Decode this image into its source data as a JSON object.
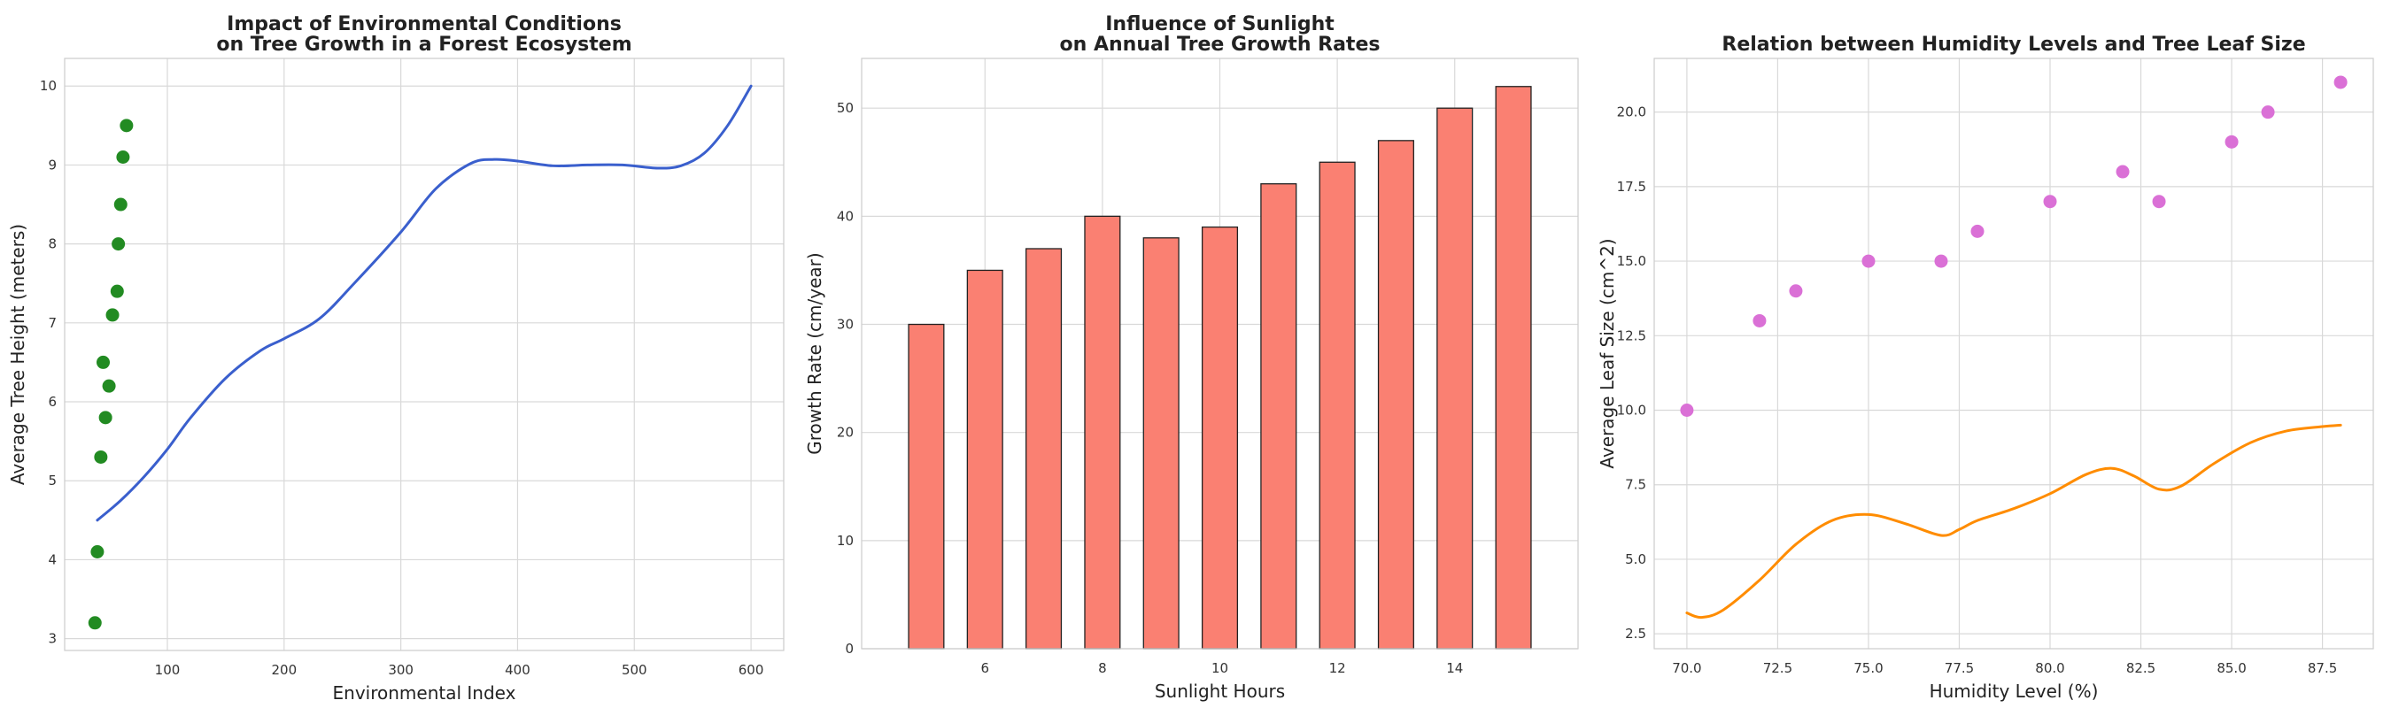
{
  "chart_data": [
    {
      "type": "scatter",
      "title": [
        "Impact of Environmental Conditions",
        "on Tree Growth in a Forest Ecosystem"
      ],
      "xlabel": "Environmental Index",
      "ylabel": "Average Tree Height (meters)",
      "xlim": [
        12,
        628
      ],
      "ylim": [
        2.85,
        10.35
      ],
      "xticks": [
        100,
        200,
        300,
        400,
        500,
        600
      ],
      "yticks": [
        3,
        4,
        5,
        6,
        7,
        8,
        9,
        10
      ],
      "grid": true,
      "scatter": {
        "color": "#228b22",
        "points": [
          [
            38,
            3.2
          ],
          [
            40,
            4.1
          ],
          [
            43,
            5.3
          ],
          [
            47,
            5.8
          ],
          [
            45,
            6.5
          ],
          [
            50,
            6.2
          ],
          [
            53,
            7.1
          ],
          [
            57,
            7.4
          ],
          [
            58,
            8.0
          ],
          [
            60,
            8.5
          ],
          [
            62,
            9.1
          ],
          [
            65,
            9.5
          ]
        ]
      },
      "line": {
        "color": "#3a5fcd",
        "points": [
          [
            40,
            4.5
          ],
          [
            60,
            4.75
          ],
          [
            80,
            5.05
          ],
          [
            100,
            5.4
          ],
          [
            120,
            5.8
          ],
          [
            150,
            6.3
          ],
          [
            180,
            6.65
          ],
          [
            200,
            6.8
          ],
          [
            230,
            7.05
          ],
          [
            260,
            7.5
          ],
          [
            300,
            8.15
          ],
          [
            330,
            8.7
          ],
          [
            360,
            9.02
          ],
          [
            380,
            9.07
          ],
          [
            400,
            9.05
          ],
          [
            430,
            8.99
          ],
          [
            460,
            9.0
          ],
          [
            490,
            9.0
          ],
          [
            520,
            8.96
          ],
          [
            540,
            8.99
          ],
          [
            560,
            9.15
          ],
          [
            580,
            9.5
          ],
          [
            600,
            10.0
          ]
        ]
      }
    },
    {
      "type": "bar",
      "title": [
        "Influence of Sunlight",
        "on Annual Tree Growth Rates"
      ],
      "xlabel": "Sunlight Hours",
      "ylabel": "Growth Rate (cm/year)",
      "xlim": [
        3.9,
        16.1
      ],
      "ylim": [
        0,
        54.6
      ],
      "xticks": [
        6,
        8,
        10,
        12,
        14
      ],
      "yticks": [
        0,
        10,
        20,
        30,
        40,
        50
      ],
      "grid": true,
      "bar_color": "#fa8072",
      "bar_width": 0.6,
      "categories": [
        5,
        6,
        7,
        8,
        9,
        10,
        11,
        12,
        13,
        14,
        15
      ],
      "values": [
        30,
        35,
        37,
        40,
        38,
        39,
        43,
        45,
        47,
        50,
        52
      ]
    },
    {
      "type": "scatter",
      "title": [
        "Relation between Humidity Levels and Tree Leaf Size"
      ],
      "xlabel": "Humidity Level (%)",
      "ylabel": "Average Leaf Size (cm^2)",
      "xlim": [
        69.1,
        88.9
      ],
      "ylim": [
        2.0,
        21.8
      ],
      "xticks": [
        70.0,
        72.5,
        75.0,
        77.5,
        80.0,
        82.5,
        85.0,
        87.5
      ],
      "yticks": [
        2.5,
        5.0,
        7.5,
        10.0,
        12.5,
        15.0,
        17.5,
        20.0
      ],
      "grid": true,
      "scatter": {
        "color": "#da70d6",
        "points": [
          [
            70,
            10
          ],
          [
            72,
            13
          ],
          [
            73,
            14
          ],
          [
            75,
            15
          ],
          [
            77,
            15
          ],
          [
            78,
            16
          ],
          [
            80,
            17
          ],
          [
            82,
            18
          ],
          [
            83,
            17
          ],
          [
            85,
            19
          ],
          [
            86,
            20
          ],
          [
            88,
            21
          ]
        ]
      },
      "line": {
        "color": "#ff8c00",
        "points": [
          [
            70,
            3.2
          ],
          [
            70.4,
            3.05
          ],
          [
            71,
            3.3
          ],
          [
            72,
            4.3
          ],
          [
            73,
            5.5
          ],
          [
            74,
            6.3
          ],
          [
            75,
            6.5
          ],
          [
            76,
            6.2
          ],
          [
            77,
            5.8
          ],
          [
            77.5,
            6.0
          ],
          [
            78,
            6.3
          ],
          [
            79,
            6.7
          ],
          [
            80,
            7.2
          ],
          [
            81,
            7.85
          ],
          [
            81.7,
            8.05
          ],
          [
            82.3,
            7.8
          ],
          [
            83,
            7.35
          ],
          [
            83.6,
            7.45
          ],
          [
            84.5,
            8.2
          ],
          [
            85.5,
            8.9
          ],
          [
            86.5,
            9.3
          ],
          [
            87.5,
            9.45
          ],
          [
            88,
            9.5
          ]
        ]
      }
    }
  ]
}
